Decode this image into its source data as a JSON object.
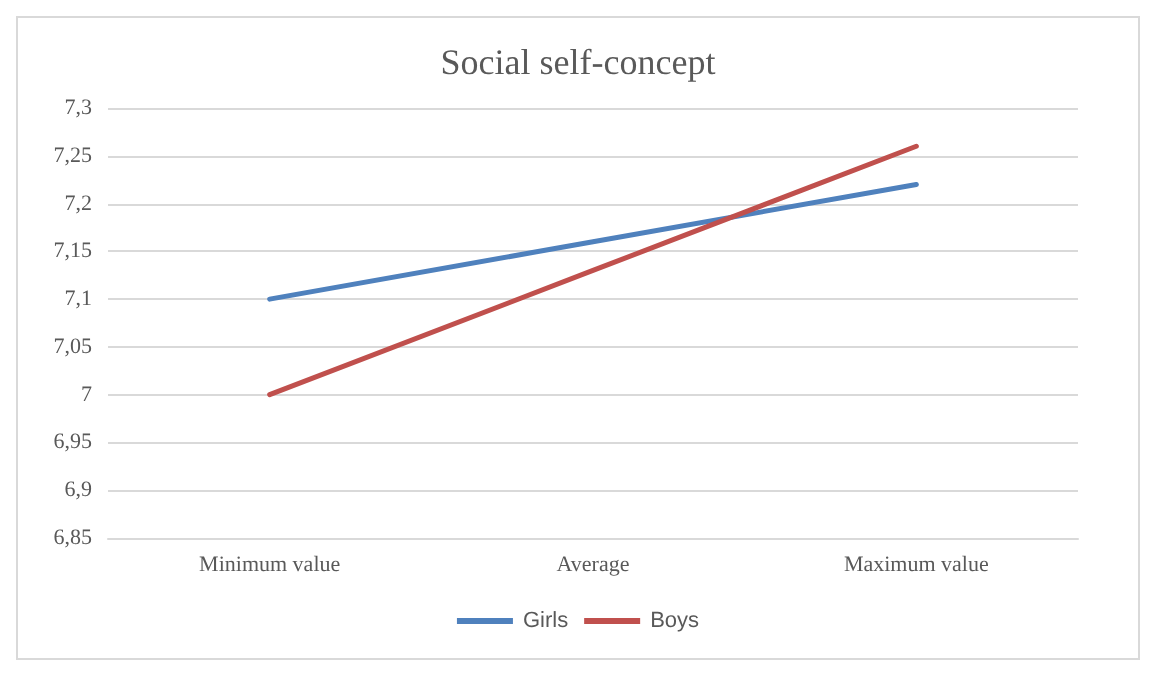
{
  "chart_data": {
    "type": "line",
    "title": "Social self-concept",
    "categories": [
      "Minimum value",
      "Average",
      "Maximum value"
    ],
    "series": [
      {
        "name": "Girls",
        "color": "#4f81bd",
        "values": [
          7.1,
          7.16,
          7.22
        ]
      },
      {
        "name": "Boys",
        "color": "#c0504d",
        "values": [
          7.0,
          7.13,
          7.26
        ]
      }
    ],
    "ylim": [
      6.85,
      7.3
    ],
    "yticks": [
      {
        "value": 6.85,
        "label": "6,85"
      },
      {
        "value": 6.9,
        "label": "6,9"
      },
      {
        "value": 6.95,
        "label": "6,95"
      },
      7,
      {
        "value": 7.05,
        "label": "7,05"
      },
      {
        "value": 7.1,
        "label": "7,1"
      },
      {
        "value": 7.15,
        "label": "7,15"
      },
      {
        "value": 7.2,
        "label": "7,2"
      },
      {
        "value": 7.25,
        "label": "7,25"
      },
      {
        "value": 7.3,
        "label": "7,3"
      }
    ],
    "grid": "y",
    "legend": "bottom",
    "marker": "none",
    "line_style": "solid"
  }
}
